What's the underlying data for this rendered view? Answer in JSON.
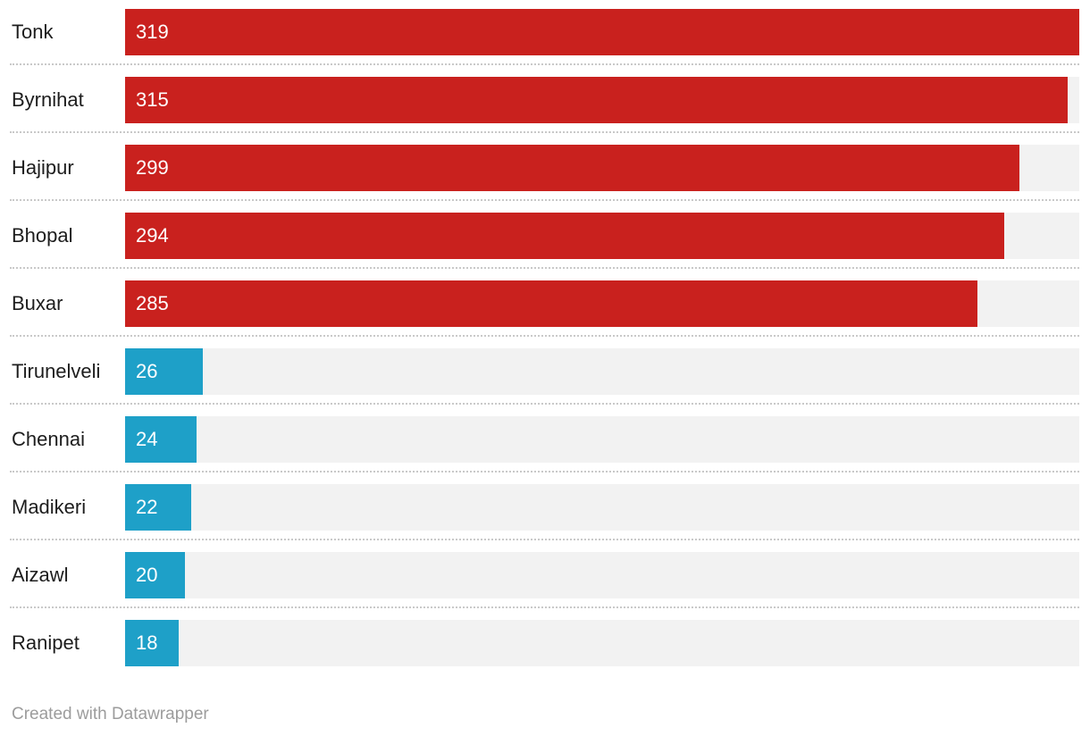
{
  "chart_data": {
    "type": "bar",
    "orientation": "horizontal",
    "categories": [
      "Tonk",
      "Byrnihat",
      "Hajipur",
      "Bhopal",
      "Buxar",
      "Tirunelveli",
      "Chennai",
      "Madikeri",
      "Aizawl",
      "Ranipet"
    ],
    "values": [
      319,
      315,
      299,
      294,
      285,
      26,
      24,
      22,
      20,
      18
    ],
    "value_labels": [
      "319",
      "315",
      "299",
      "294",
      "285",
      "26",
      "24",
      "22",
      "20",
      "18"
    ],
    "bar_colors": [
      "#c9211e",
      "#c9211e",
      "#c9211e",
      "#c9211e",
      "#c9211e",
      "#1ea0c8",
      "#1ea0c8",
      "#1ea0c8",
      "#1ea0c8",
      "#1ea0c8"
    ],
    "high_color": "#c9211e",
    "low_color": "#1ea0c8",
    "track_color": "#f2f2f2",
    "separator_color": "#c9c9c9",
    "xlim": [
      0,
      319
    ],
    "grid": false,
    "legend": "none",
    "title": "",
    "xlabel": "",
    "ylabel": ""
  },
  "footer": {
    "attribution": "Created with Datawrapper"
  }
}
